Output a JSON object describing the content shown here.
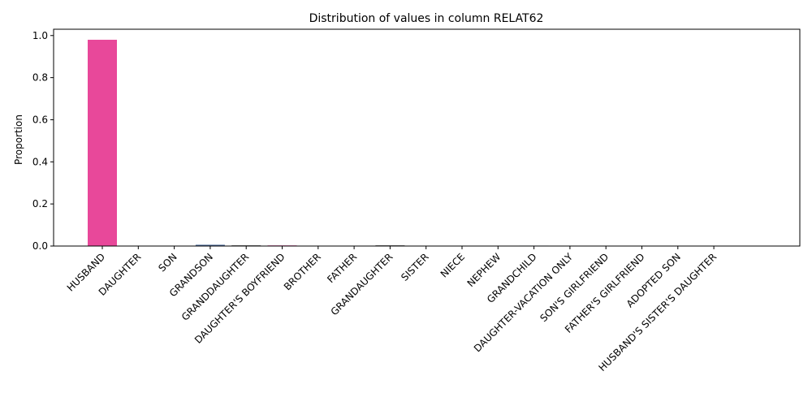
{
  "chart_data": {
    "type": "bar",
    "title": "Distribution of values in column RELAT62",
    "xlabel": "",
    "ylabel": "Proportion",
    "ylim": [
      0,
      1.03
    ],
    "yticks": [
      0.0,
      0.2,
      0.4,
      0.6,
      0.8,
      1.0
    ],
    "ytick_labels": [
      "0.0",
      "0.2",
      "0.4",
      "0.6",
      "0.8",
      "1.0"
    ],
    "grid": false,
    "categories": [
      "HUSBAND",
      "DAUGHTER",
      "SON",
      "GRANDSON",
      "GRANDDAUGHTER",
      "DAUGHTER'S BOYFRIEND",
      "BROTHER",
      "FATHER",
      "GRANDAUGHTER",
      "SISTER",
      "NIECE",
      "NEPHEW",
      "GRANDCHILD",
      "DAUGHTER-VACATION ONLY",
      "SON'S GIRLFRIEND",
      "FATHER'S GIRLFRIEND",
      "ADOPTED SON",
      "HUSBAND'S SISTER'S DAUGHTER"
    ],
    "values": [
      0.98,
      0.001,
      0.001,
      0.006,
      0.003,
      0.003,
      0.0004,
      0.0004,
      0.003,
      0.0004,
      0.0004,
      0.001,
      0.002,
      0.0004,
      0.0004,
      0.0004,
      0.0004,
      0.0004
    ],
    "colors": [
      "#e8489a",
      "#e8489a",
      "#8e6a86",
      "#4a6a9a",
      "#222222",
      "#e8489a",
      "#888888",
      "#888888",
      "#222222",
      "#888888",
      "#888888",
      "#8e6a86",
      "#4a6a9a",
      "#888888",
      "#888888",
      "#888888",
      "#888888",
      "#888888"
    ]
  }
}
